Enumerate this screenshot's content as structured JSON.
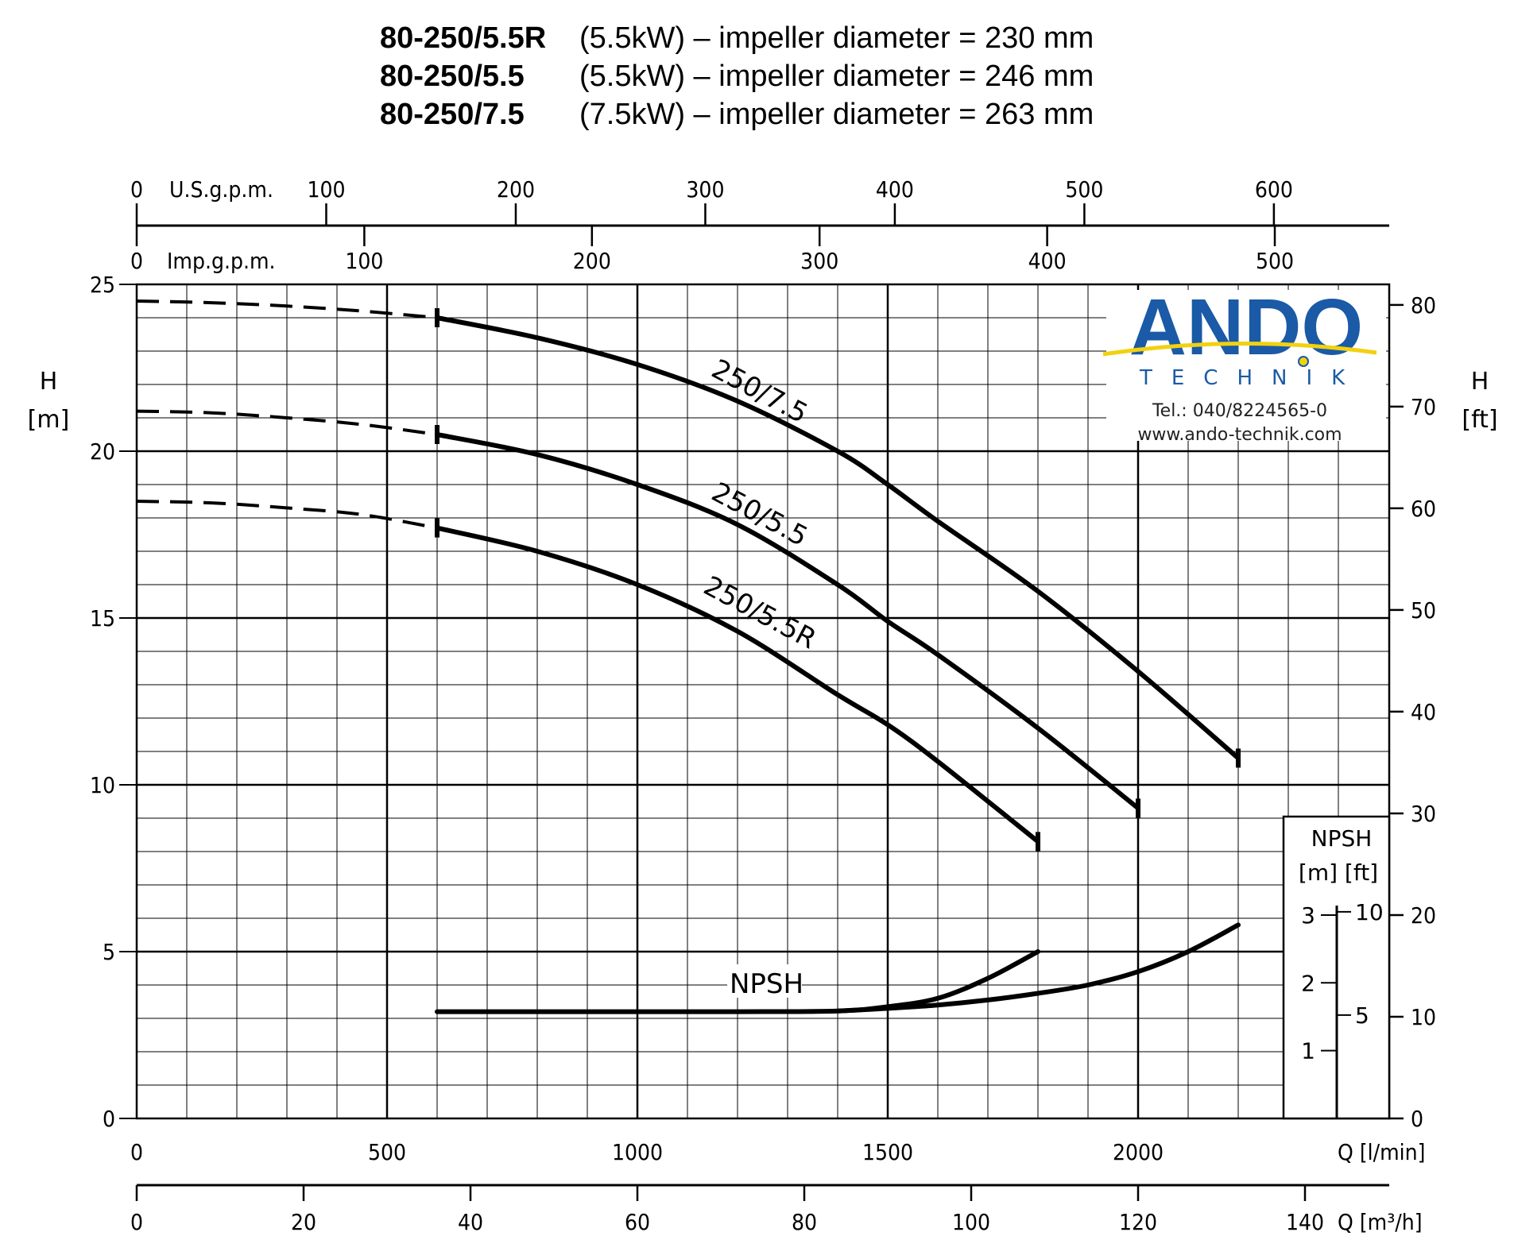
{
  "title_lines": [
    {
      "model": "80-250/5.5R",
      "rest": "(5.5kW) – impeller diameter = 230 mm"
    },
    {
      "model": "80-250/5.5",
      "rest": "(5.5kW) – impeller diameter = 246 mm"
    },
    {
      "model": "80-250/7.5",
      "rest": "(7.5kW) – impeller diameter = 263 mm"
    }
  ],
  "logo": {
    "brand": "ANDO",
    "sub": "TECHNIK",
    "phone": "Tel.: 040/8224565-0",
    "web": "www.ando-technik.com",
    "colors": {
      "brand": "#1a5aa6",
      "swoosh": "#f2d10f"
    }
  },
  "axes": {
    "left_title": [
      "H",
      "[m]"
    ],
    "right_title": [
      "H",
      "[ft]"
    ],
    "bottom_title": "Q [l/min]",
    "bottom2_title": "Q [m³/h]",
    "top1_title": "U.S.g.p.m.",
    "top2_title": "Imp.g.p.m.",
    "left_ticks": [
      "0",
      "5",
      "10",
      "15",
      "20",
      "25"
    ],
    "right_ticks": [
      "0",
      "10",
      "20",
      "30",
      "40",
      "50",
      "60",
      "70",
      "80"
    ],
    "bottom_ticks": [
      "0",
      "500",
      "1000",
      "1500",
      "2000"
    ],
    "bottom2_ticks": [
      "0",
      "20",
      "40",
      "60",
      "80",
      "100",
      "120",
      "140"
    ],
    "top1_ticks": [
      "0",
      "100",
      "200",
      "300",
      "400",
      "500",
      "600"
    ],
    "top2_ticks": [
      "0",
      "100",
      "200",
      "300",
      "400",
      "500"
    ]
  },
  "npsh_box": {
    "title": "NPSH",
    "units": "[m] [ft]",
    "m_ticks": [
      "1",
      "2",
      "3"
    ],
    "ft_ticks": [
      "5",
      "10"
    ]
  },
  "chart_data": {
    "type": "line",
    "xlabel": "Q [l/min]",
    "ylabel": "H [m]",
    "xlim": [
      0,
      2500
    ],
    "ylim": [
      0,
      25
    ],
    "grid": true,
    "series": [
      {
        "name": "250/7.5",
        "dashed_x": [
          0,
          150,
          300,
          450,
          600
        ],
        "dashed_y": [
          24.5,
          24.45,
          24.35,
          24.2,
          24.0
        ],
        "x": [
          600,
          800,
          1000,
          1200,
          1400,
          1500,
          1600,
          1800,
          2000,
          2200
        ],
        "y": [
          24.0,
          23.4,
          22.6,
          21.5,
          20.0,
          19.0,
          17.9,
          15.8,
          13.4,
          10.8
        ]
      },
      {
        "name": "250/5.5",
        "dashed_x": [
          0,
          150,
          300,
          450,
          600
        ],
        "dashed_y": [
          21.2,
          21.15,
          21.0,
          20.8,
          20.5
        ],
        "x": [
          600,
          800,
          1000,
          1200,
          1400,
          1500,
          1600,
          1800,
          2000
        ],
        "y": [
          20.5,
          19.9,
          19.0,
          17.8,
          16.0,
          14.9,
          13.9,
          11.7,
          9.3
        ]
      },
      {
        "name": "250/5.5R",
        "dashed_x": [
          0,
          150,
          300,
          450,
          600
        ],
        "dashed_y": [
          18.5,
          18.45,
          18.3,
          18.1,
          17.7
        ],
        "x": [
          600,
          800,
          1000,
          1200,
          1400,
          1500,
          1600,
          1800
        ],
        "y": [
          17.7,
          17.0,
          16.0,
          14.6,
          12.7,
          11.8,
          10.7,
          8.3
        ]
      },
      {
        "name": "NPSH",
        "x": [
          600,
          800,
          1000,
          1200,
          1400,
          1500,
          1600,
          1700,
          1800
        ],
        "y": [
          3.2,
          3.2,
          3.2,
          3.2,
          3.22,
          3.35,
          3.6,
          4.2,
          5.0
        ]
      },
      {
        "name": "NPSH",
        "x": [
          1400,
          1500,
          1600,
          1700,
          1800,
          1900,
          2000,
          2100,
          2200
        ],
        "y": [
          3.22,
          3.3,
          3.4,
          3.55,
          3.75,
          4.0,
          4.4,
          5.0,
          5.8
        ]
      }
    ],
    "curve_labels": [
      "250/7.5",
      "250/5.5",
      "250/5.5R",
      "NPSH"
    ]
  }
}
